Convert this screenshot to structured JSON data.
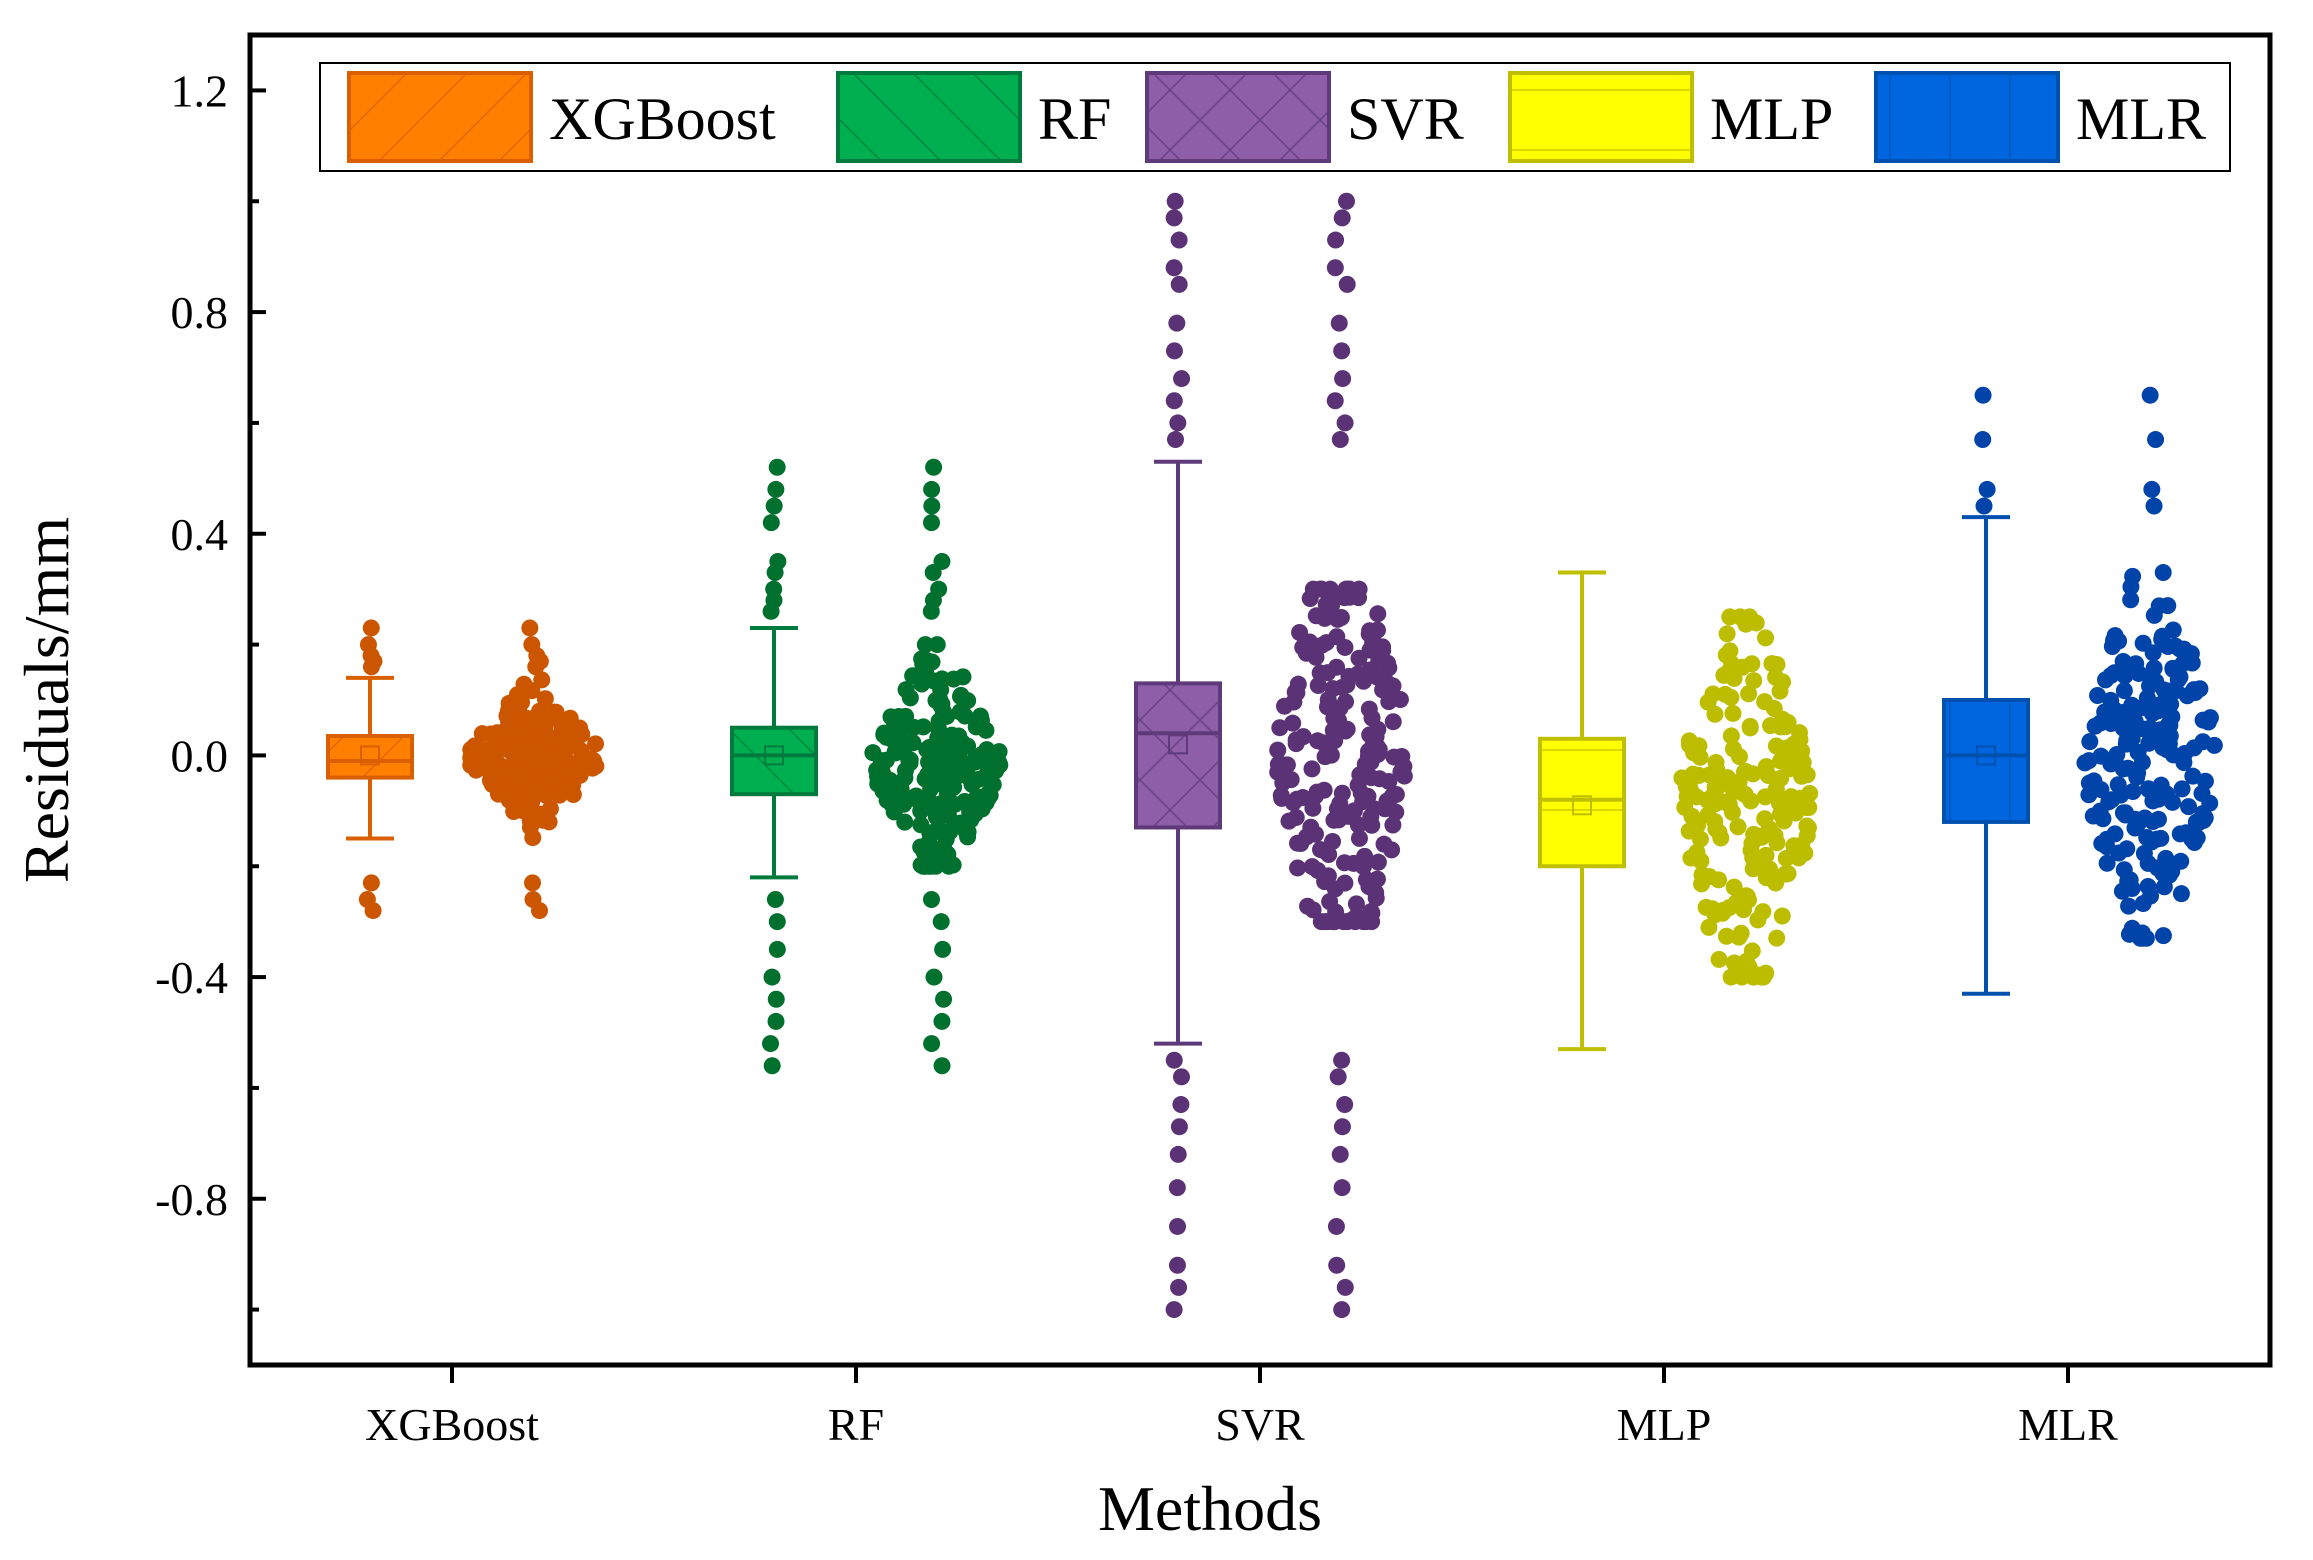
{
  "chart_data": {
    "type": "box",
    "xlabel": "Methods",
    "ylabel": "Residuals/mm",
    "ylim": [
      -1.1,
      1.3
    ],
    "yticks": [
      "-0.8",
      "-0.4",
      "0.0",
      "0.4",
      "0.8",
      "1.2"
    ],
    "ytick_values": [
      -0.8,
      -0.4,
      0.0,
      0.4,
      0.8,
      1.2
    ],
    "categories": [
      "XGBoost",
      "RF",
      "SVR",
      "MLP",
      "MLR"
    ],
    "legend": {
      "placement": "top",
      "entries": [
        "XGBoost",
        "RF",
        "SVR",
        "MLP",
        "MLR"
      ]
    },
    "series": [
      {
        "name": "XGBoost",
        "color": "#FF8000",
        "edge": "#D95F00",
        "points": "#CC5500",
        "pattern": "diagonal",
        "whisker_low": -0.15,
        "q1": -0.04,
        "median": -0.01,
        "mean": 0.0,
        "q3": 0.035,
        "whisker_high": 0.14,
        "outliers": [
          0.23,
          0.2,
          0.18,
          0.17,
          0.16,
          -0.23,
          -0.26,
          -0.28
        ],
        "spread": [
          -0.15,
          0.17
        ]
      },
      {
        "name": "RF",
        "color": "#00B050",
        "edge": "#007A3D",
        "points": "#00702E",
        "pattern": "crossdiag",
        "whisker_low": -0.22,
        "q1": -0.07,
        "median": 0.0,
        "mean": 0.0,
        "q3": 0.05,
        "whisker_high": 0.23,
        "outliers": [
          0.52,
          0.48,
          0.45,
          0.42,
          0.35,
          0.33,
          0.3,
          0.28,
          0.26,
          -0.26,
          -0.3,
          -0.35,
          -0.4,
          -0.44,
          -0.48,
          -0.52,
          -0.56
        ],
        "spread": [
          -0.2,
          0.2
        ]
      },
      {
        "name": "SVR",
        "color": "#8E5EA8",
        "edge": "#5E3A7A",
        "points": "#5A3275",
        "pattern": "cross",
        "whisker_low": -0.52,
        "q1": -0.13,
        "median": 0.04,
        "mean": 0.02,
        "q3": 0.13,
        "whisker_high": 0.53,
        "outliers": [
          1.0,
          0.97,
          0.93,
          0.88,
          0.85,
          0.78,
          0.73,
          0.68,
          0.64,
          0.6,
          0.57,
          -0.55,
          -0.58,
          -0.63,
          -0.67,
          -0.72,
          -0.78,
          -0.85,
          -0.92,
          -0.96,
          -1.0
        ],
        "spread": [
          -0.3,
          0.3
        ]
      },
      {
        "name": "MLP",
        "color": "#FFFF00",
        "edge": "#BFBF00",
        "points": "#BDBD00",
        "pattern": "horizontal",
        "whisker_low": -0.53,
        "q1": -0.2,
        "median": -0.08,
        "mean": -0.09,
        "q3": 0.03,
        "whisker_high": 0.33,
        "outliers": [],
        "spread": [
          -0.4,
          0.25
        ]
      },
      {
        "name": "MLR",
        "color": "#0066E0",
        "edge": "#0050B0",
        "points": "#0044AA",
        "pattern": "vertical",
        "whisker_low": -0.43,
        "q1": -0.12,
        "median": 0.0,
        "mean": 0.0,
        "q3": 0.1,
        "whisker_high": 0.43,
        "outliers": [
          0.65,
          0.57,
          0.48,
          0.45
        ],
        "spread": [
          -0.33,
          0.33
        ]
      }
    ]
  }
}
